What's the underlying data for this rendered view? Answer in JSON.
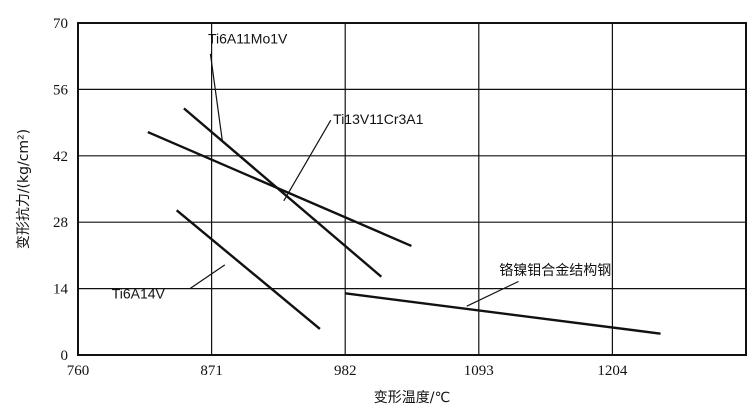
{
  "chart_data": {
    "type": "line",
    "xlabel": "变形温度/℃",
    "ylabel": "变形抗力/(kg/cm²)",
    "xlim": [
      760,
      1315
    ],
    "ylim": [
      0,
      70
    ],
    "x_ticks": [
      760,
      871,
      982,
      1093,
      1204
    ],
    "y_ticks": [
      0,
      14,
      28,
      42,
      56,
      70
    ],
    "grid": true,
    "series": [
      {
        "name": "Ti6A11Mo1V",
        "x": [
          848,
          1012
        ],
        "y": [
          52,
          16.5
        ]
      },
      {
        "name": "Ti13V11Cr3A1",
        "x": [
          818,
          1037
        ],
        "y": [
          47,
          23
        ]
      },
      {
        "name": "Ti6A14V",
        "x": [
          842,
          961
        ],
        "y": [
          30.5,
          5.5
        ]
      },
      {
        "name": "铬镍钼合金结构钢",
        "x": [
          982,
          1244
        ],
        "y": [
          13,
          4.5
        ]
      }
    ]
  }
}
